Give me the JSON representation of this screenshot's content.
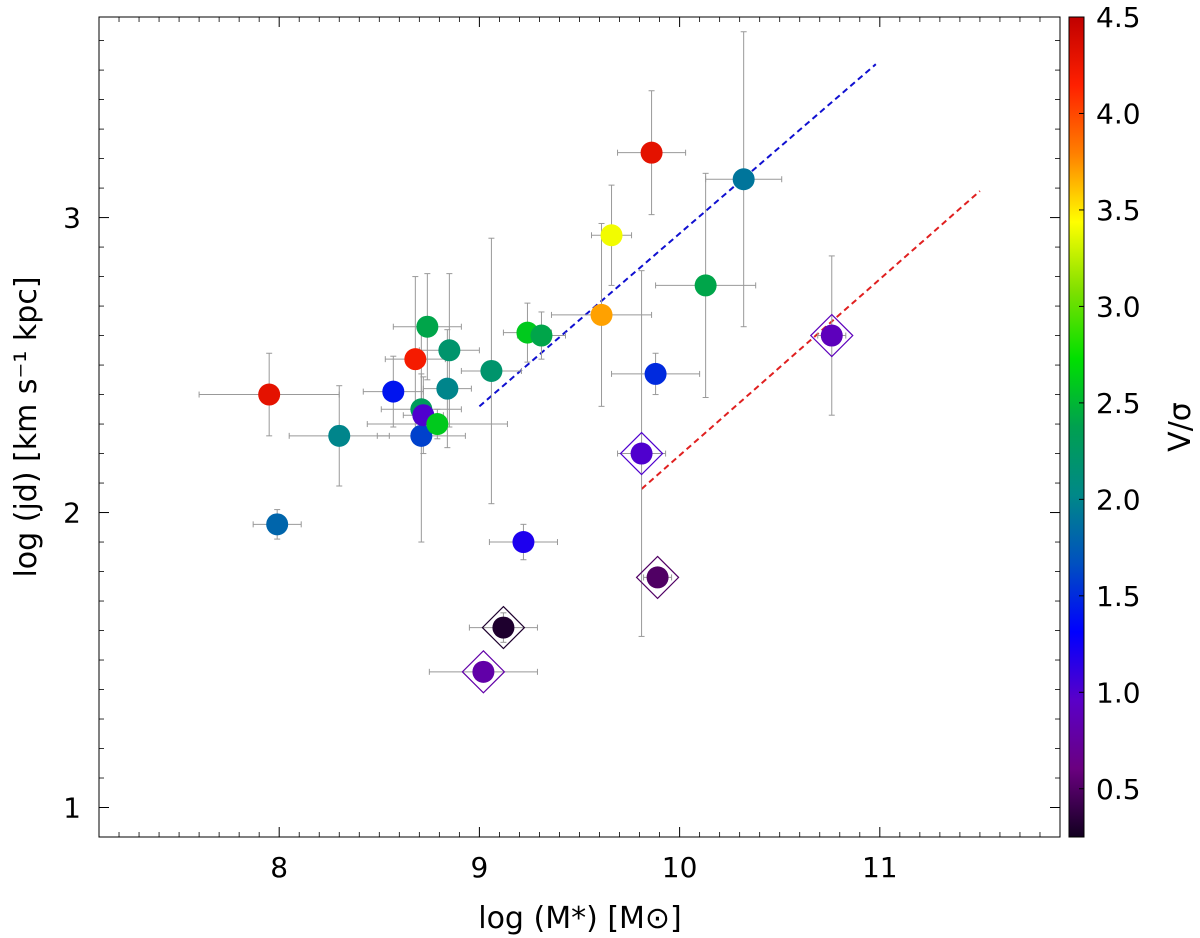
{
  "chart_data": {
    "type": "scatter",
    "xlabel": "log (M*) [M⊙]",
    "ylabel": "log (jd) [km s⁻¹ kpc]",
    "colorbar_label": "V/σ",
    "xlim": [
      7.1,
      11.9
    ],
    "ylim": [
      0.9,
      3.68
    ],
    "x_ticks": [
      "8",
      "9",
      "10",
      "11"
    ],
    "y_ticks": [
      "1",
      "2",
      "3"
    ],
    "colorbar_range": [
      0.25,
      4.5
    ],
    "colorbar_ticks": [
      "0.5",
      "1.0",
      "1.5",
      "2.0",
      "2.5",
      "3.0",
      "3.5",
      "4.0",
      "4.5"
    ],
    "colormap": [
      "#120020",
      "#6a0080",
      "#5a00c8",
      "#0000ff",
      "#0050c0",
      "#008888",
      "#00a050",
      "#00e000",
      "#80e000",
      "#ffff00",
      "#ff8000",
      "#ff2000",
      "#c00000"
    ],
    "grid": false,
    "points": [
      {
        "x": 7.95,
        "y": 2.4,
        "xerr": 0.35,
        "yerr": 0.14,
        "v_sigma": 4.3
      },
      {
        "x": 7.99,
        "y": 1.96,
        "xerr": 0.12,
        "yerr": 0.05,
        "v_sigma": 1.8
      },
      {
        "x": 8.3,
        "y": 2.26,
        "xerr": 0.25,
        "yerr": 0.17,
        "v_sigma": 2.0
      },
      {
        "x": 8.57,
        "y": 2.41,
        "xerr": 0.15,
        "yerr": 0.12,
        "v_sigma": 1.4
      },
      {
        "x": 8.68,
        "y": 2.52,
        "xerr": 0.15,
        "yerr": 0.28,
        "v_sigma": 4.2
      },
      {
        "x": 8.71,
        "y": 2.26,
        "xerr": 0.22,
        "yerr": 0.36,
        "v_sigma": 1.6
      },
      {
        "x": 8.71,
        "y": 2.35,
        "xerr": 0.2,
        "yerr": 0.12,
        "v_sigma": 2.3
      },
      {
        "x": 8.72,
        "y": 2.33,
        "xerr": 0.1,
        "yerr": 0.13,
        "v_sigma": 1.0
      },
      {
        "x": 8.74,
        "y": 2.63,
        "xerr": 0.17,
        "yerr": 0.18,
        "v_sigma": 2.4
      },
      {
        "x": 8.79,
        "y": 2.3,
        "xerr": 0.35,
        "yerr": 0.05,
        "v_sigma": 2.6
      },
      {
        "x": 8.84,
        "y": 2.42,
        "xerr": 0.12,
        "yerr": 0.2,
        "v_sigma": 2.0
      },
      {
        "x": 8.85,
        "y": 2.55,
        "xerr": 0.15,
        "yerr": 0.26,
        "v_sigma": 2.2
      },
      {
        "x": 9.06,
        "y": 2.48,
        "xerr": 0.15,
        "yerr": 0.45,
        "v_sigma": 2.2
      },
      {
        "x": 9.12,
        "y": 1.61,
        "xerr": 0.17,
        "yerr": 0.05,
        "v_sigma": 0.3
      },
      {
        "x": 9.02,
        "y": 1.46,
        "xerr": 0.27,
        "yerr": 0.03,
        "v_sigma": 0.8
      },
      {
        "x": 9.22,
        "y": 1.9,
        "xerr": 0.17,
        "yerr": 0.06,
        "v_sigma": 1.2
      },
      {
        "x": 9.24,
        "y": 2.61,
        "xerr": 0.12,
        "yerr": 0.1,
        "v_sigma": 2.6
      },
      {
        "x": 9.31,
        "y": 2.6,
        "xerr": 0.12,
        "yerr": 0.08,
        "v_sigma": 2.4
      },
      {
        "x": 9.61,
        "y": 2.67,
        "xerr": 0.25,
        "yerr": 0.31,
        "v_sigma": 3.7
      },
      {
        "x": 9.66,
        "y": 2.94,
        "xerr": 0.1,
        "yerr": 0.17,
        "v_sigma": 3.4
      },
      {
        "x": 9.81,
        "y": 2.2,
        "xerr": 0.12,
        "yerr": 0.62,
        "v_sigma": 1.0
      },
      {
        "x": 9.86,
        "y": 3.22,
        "xerr": 0.17,
        "yerr": 0.21,
        "v_sigma": 4.3
      },
      {
        "x": 9.88,
        "y": 2.47,
        "xerr": 0.22,
        "yerr": 0.07,
        "v_sigma": 1.5
      },
      {
        "x": 9.89,
        "y": 1.78,
        "xerr": 0.07,
        "yerr": 0.03,
        "v_sigma": 0.5
      },
      {
        "x": 10.13,
        "y": 2.77,
        "xerr": 0.25,
        "yerr": 0.38,
        "v_sigma": 2.4
      },
      {
        "x": 10.32,
        "y": 3.13,
        "xerr": 0.19,
        "yerr": 0.5,
        "v_sigma": 1.9
      },
      {
        "x": 10.76,
        "y": 2.6,
        "xerr": 0.07,
        "yerr": 0.27,
        "v_sigma": 0.9
      }
    ],
    "diamond_markers": [
      {
        "x": 9.12,
        "y": 1.61,
        "v_sigma": 0.3
      },
      {
        "x": 9.02,
        "y": 1.46,
        "v_sigma": 0.8
      },
      {
        "x": 9.81,
        "y": 2.2,
        "v_sigma": 1.0
      },
      {
        "x": 9.89,
        "y": 1.78,
        "v_sigma": 0.5
      },
      {
        "x": 10.76,
        "y": 2.6,
        "v_sigma": 0.9
      }
    ],
    "fit_lines": [
      {
        "name": "blue-dashed",
        "color": "#1010d0",
        "x": [
          9.0,
          10.98
        ],
        "y": [
          2.36,
          3.52
        ]
      },
      {
        "name": "red-dashed",
        "color": "#e02020",
        "x": [
          9.81,
          11.5
        ],
        "y": [
          2.08,
          3.09
        ]
      }
    ]
  }
}
